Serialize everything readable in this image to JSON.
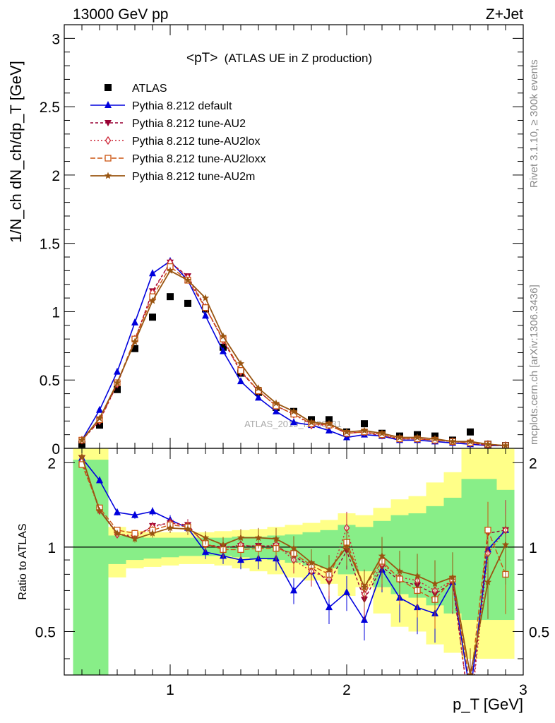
{
  "header": {
    "left": "13000 GeV pp",
    "right": "Z+Jet",
    "title": "<pT>",
    "title_suffix": "(ATLAS UE in Z production)",
    "side_top": "Rivet 3.1.10, ≥ 300k events",
    "side_bottom": "mcplots.cern.ch [arXiv:1306.3436]",
    "watermark": "ATLAS_2019_I1736531"
  },
  "colors": {
    "data": "#000000",
    "default": "#0000dd",
    "au2": "#990033",
    "au2lox": "#cc2233",
    "au2loxx": "#cc5511",
    "au2m": "#995511",
    "band_inner": "#88ee88",
    "band_outer": "#ffff88"
  },
  "chart_data": [
    {
      "type": "line",
      "ylabel": "1/N_ch dN_ch/dp_T [GeV]",
      "xlim": [
        0.4,
        3.0
      ],
      "ylim": [
        0,
        3.1
      ],
      "y_ticks": [
        "0",
        "0.5",
        "1",
        "1.5",
        "2",
        "2.5",
        "3"
      ],
      "x": [
        0.5,
        0.6,
        0.7,
        0.8,
        0.9,
        1.0,
        1.1,
        1.2,
        1.3,
        1.4,
        1.5,
        1.6,
        1.7,
        1.8,
        1.9,
        2.0,
        2.1,
        2.2,
        2.3,
        2.4,
        2.5,
        2.6,
        2.7,
        2.8,
        2.9
      ],
      "series": [
        {
          "name": "ATLAS",
          "key": "data",
          "marker": "square",
          "values": [
            0.03,
            0.17,
            0.43,
            0.73,
            0.96,
            1.11,
            1.06,
            1.02,
            0.74,
            0.55,
            0.41,
            0.3,
            0.27,
            0.21,
            0.21,
            0.12,
            0.18,
            0.11,
            0.09,
            0.1,
            0.09,
            0.06,
            0.12,
            0.03,
            0.02
          ]
        },
        {
          "name": "Pythia 8.212 default",
          "key": "default",
          "marker": "triangle",
          "values": [
            0.06,
            0.28,
            0.56,
            0.92,
            1.28,
            1.37,
            1.23,
            0.97,
            0.71,
            0.49,
            0.37,
            0.27,
            0.19,
            0.17,
            0.13,
            0.08,
            0.1,
            0.09,
            0.06,
            0.06,
            0.05,
            0.04,
            0.03,
            0.02,
            0.02
          ]
        },
        {
          "name": "Pythia 8.212 tune-AU2",
          "key": "au2",
          "marker": "triangle-down",
          "values": [
            0.06,
            0.2,
            0.47,
            0.79,
            1.15,
            1.36,
            1.26,
            1.03,
            0.79,
            0.56,
            0.42,
            0.31,
            0.25,
            0.18,
            0.17,
            0.11,
            0.12,
            0.09,
            0.07,
            0.07,
            0.06,
            0.05,
            0.04,
            0.02,
            0.02
          ]
        },
        {
          "name": "Pythia 8.212 tune-AU2lox",
          "key": "au2lox",
          "marker": "diamond",
          "values": [
            0.06,
            0.2,
            0.47,
            0.8,
            1.14,
            1.36,
            1.25,
            1.03,
            0.79,
            0.56,
            0.42,
            0.31,
            0.25,
            0.17,
            0.17,
            0.11,
            0.12,
            0.1,
            0.07,
            0.07,
            0.06,
            0.05,
            0.04,
            0.03,
            0.02
          ]
        },
        {
          "name": "Pythia 8.212 tune-AU2loxx",
          "key": "au2loxx",
          "marker": "square-open",
          "values": [
            0.06,
            0.21,
            0.48,
            0.8,
            1.11,
            1.33,
            1.23,
            1.03,
            0.8,
            0.57,
            0.42,
            0.31,
            0.25,
            0.18,
            0.17,
            0.11,
            0.12,
            0.1,
            0.07,
            0.07,
            0.06,
            0.05,
            0.04,
            0.03,
            0.02
          ]
        },
        {
          "name": "Pythia 8.212 tune-AU2m",
          "key": "au2m",
          "marker": "star",
          "values": [
            0.06,
            0.22,
            0.48,
            0.78,
            1.08,
            1.3,
            1.23,
            1.1,
            0.82,
            0.62,
            0.44,
            0.33,
            0.27,
            0.19,
            0.18,
            0.12,
            0.13,
            0.11,
            0.08,
            0.08,
            0.07,
            0.05,
            0.05,
            0.03,
            0.02
          ]
        }
      ]
    },
    {
      "type": "line",
      "ylabel": "Ratio to ATLAS",
      "xlabel": "p_T [GeV]",
      "xlim": [
        0.4,
        3.0
      ],
      "ylim": [
        0.35,
        2.25
      ],
      "x_ticks": [
        "1",
        "2",
        "3"
      ],
      "y_ticks": [
        "0.5",
        "1",
        "2"
      ],
      "x": [
        0.5,
        0.6,
        0.7,
        0.8,
        0.9,
        1.0,
        1.1,
        1.2,
        1.3,
        1.4,
        1.5,
        1.6,
        1.7,
        1.8,
        1.9,
        2.0,
        2.1,
        2.2,
        2.3,
        2.4,
        2.5,
        2.6,
        2.7,
        2.8,
        2.9
      ],
      "bands": {
        "edges": [
          0.45,
          0.55,
          0.65,
          0.75,
          0.85,
          0.95,
          1.05,
          1.15,
          1.25,
          1.35,
          1.45,
          1.55,
          1.65,
          1.75,
          1.85,
          1.95,
          2.05,
          2.15,
          2.25,
          2.35,
          2.45,
          2.55,
          2.65,
          2.75,
          2.85,
          2.95
        ],
        "outer_lo": [
          0.35,
          0.59,
          0.78,
          0.84,
          0.85,
          0.86,
          0.87,
          0.87,
          0.86,
          0.84,
          0.82,
          0.8,
          0.78,
          0.76,
          0.74,
          0.67,
          0.72,
          0.58,
          0.52,
          0.5,
          0.45,
          0.42,
          0.4,
          0.4,
          0.4
        ],
        "outer_hi": [
          2.3,
          2.3,
          1.18,
          1.14,
          1.13,
          1.13,
          1.13,
          1.13,
          1.14,
          1.15,
          1.16,
          1.18,
          1.2,
          1.22,
          1.25,
          1.32,
          1.3,
          1.38,
          1.48,
          1.52,
          1.7,
          1.85,
          2.3,
          2.3,
          2.3
        ],
        "inner_lo": [
          0.35,
          0.35,
          0.87,
          0.9,
          0.91,
          0.92,
          0.93,
          0.93,
          0.93,
          0.92,
          0.91,
          0.9,
          0.88,
          0.86,
          0.84,
          0.8,
          0.82,
          0.72,
          0.68,
          0.66,
          0.62,
          0.58,
          0.55,
          0.55,
          0.55
        ],
        "inner_hi": [
          2.05,
          2.05,
          1.1,
          1.09,
          1.08,
          1.08,
          1.08,
          1.08,
          1.08,
          1.09,
          1.09,
          1.1,
          1.11,
          1.13,
          1.15,
          1.2,
          1.18,
          1.24,
          1.3,
          1.32,
          1.4,
          1.5,
          1.75,
          1.75,
          1.6
        ]
      },
      "series": [
        {
          "name": "Pythia 8.212 default",
          "key": "default",
          "marker": "triangle",
          "values": [
            2.08,
            1.73,
            1.33,
            1.3,
            1.34,
            1.25,
            1.17,
            0.96,
            0.93,
            0.9,
            0.91,
            0.91,
            0.7,
            0.82,
            0.61,
            0.69,
            0.55,
            0.83,
            0.66,
            0.61,
            0.58,
            0.75,
            0.3,
            0.98,
            1.15
          ]
        },
        {
          "name": "Pythia 8.212 tune-AU2",
          "key": "au2",
          "marker": "triangle-down",
          "values": [
            2.08,
            1.36,
            1.12,
            1.08,
            1.19,
            1.22,
            1.2,
            1.02,
            1.0,
            1.01,
            1.01,
            1.01,
            0.93,
            0.85,
            0.75,
            0.97,
            0.65,
            0.85,
            0.76,
            0.73,
            0.68,
            0.75,
            0.25,
            1.12,
            1.15
          ]
        },
        {
          "name": "Pythia 8.212 tune-AU2lox",
          "key": "au2lox",
          "marker": "diamond",
          "values": [
            2.02,
            1.35,
            1.11,
            1.1,
            1.18,
            1.22,
            1.19,
            1.02,
            0.99,
            1.02,
            1.0,
            1.02,
            0.9,
            0.82,
            0.77,
            1.17,
            0.68,
            0.87,
            0.78,
            0.76,
            0.7,
            0.76,
            0.25,
            0.95,
            1.15
          ]
        },
        {
          "name": "Pythia 8.212 tune-AU2loxx",
          "key": "au2loxx",
          "marker": "square-open",
          "values": [
            1.97,
            1.38,
            1.15,
            1.12,
            1.15,
            1.2,
            1.18,
            1.03,
            0.98,
            0.98,
            0.99,
            0.99,
            0.95,
            0.86,
            0.8,
            1.04,
            0.72,
            0.89,
            0.77,
            0.7,
            0.65,
            0.77,
            0.32,
            1.15,
            0.8
          ]
        },
        {
          "name": "Pythia 8.212 tune-AU2m",
          "key": "au2m",
          "marker": "star",
          "values": [
            2.1,
            1.35,
            1.12,
            1.07,
            1.12,
            1.17,
            1.16,
            1.08,
            1.02,
            1.08,
            1.08,
            1.07,
            0.99,
            0.88,
            0.83,
            1.0,
            0.72,
            0.93,
            0.82,
            0.79,
            0.74,
            0.78,
            0.35,
            0.75,
            1.02
          ]
        }
      ]
    }
  ]
}
